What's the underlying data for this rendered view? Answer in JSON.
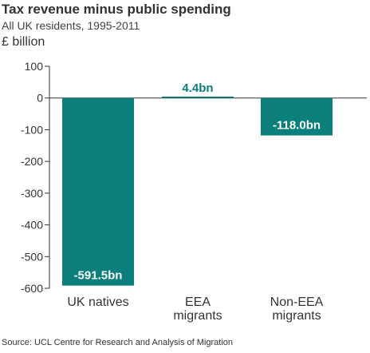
{
  "title": "Tax revenue minus public spending",
  "subtitle": "All UK residents, 1995-2011",
  "unit": "£ billion",
  "source": "Source: UCL Centre for Research and Analysis of Migration",
  "colors": {
    "bar": "#0a7f7b",
    "label_inside": "#ffffff",
    "label_outside": "#0a7f7b",
    "axis": "#333333",
    "grid": "#cccccc"
  },
  "chart_data": {
    "type": "bar",
    "title": "Tax revenue minus public spending",
    "subtitle": "All UK residents, 1995-2011",
    "ylabel": "£ billion",
    "categories": [
      "UK natives",
      "EEA migrants",
      "Non-EEA migrants"
    ],
    "category_label_lines": [
      [
        "UK natives"
      ],
      [
        "EEA",
        "migrants"
      ],
      [
        "Non-EEA",
        "migrants"
      ]
    ],
    "values": [
      -591.5,
      4.4,
      -118.0
    ],
    "data_labels": [
      "-591.5bn",
      "4.4bn",
      "-118.0bn"
    ],
    "ylim": [
      -600,
      100
    ],
    "yticks": [
      100,
      0,
      -100,
      -200,
      -300,
      -400,
      -500,
      -600
    ],
    "grid": false
  }
}
